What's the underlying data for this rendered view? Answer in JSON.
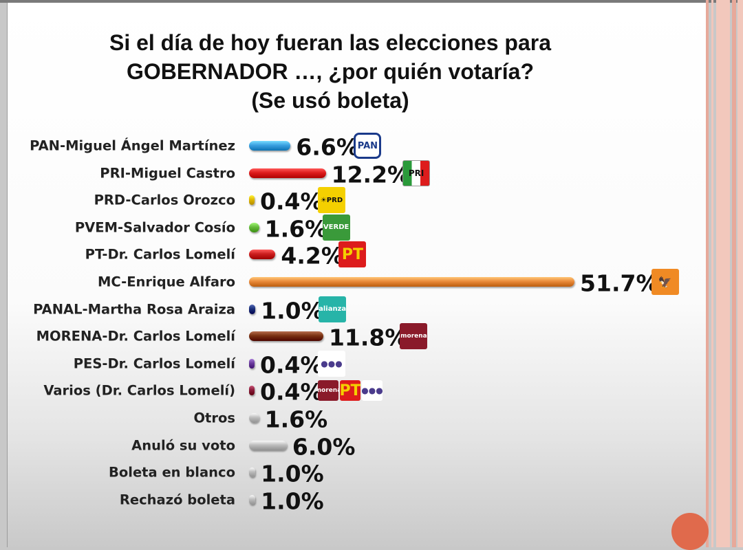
{
  "title": {
    "line1": "Si el día de hoy fueran las elecciones para",
    "line2": "GOBERNADOR …, ¿por quién votaría?",
    "line3": "(Se usó boleta)"
  },
  "colors": {
    "PAN": "#3aa0e0",
    "PRI": "#dd1c1c",
    "PRD": "#e0b800",
    "PVEM": "#66bb3c",
    "PT": "#cc1f1f",
    "MC": "#e98a3a",
    "PANAL": "#1a2f7a",
    "MORENA": "#7a3212",
    "PES": "#6a3b9c",
    "Varios": "#8b1a3a",
    "grey": "#bdbdbd"
  },
  "chart_data": {
    "type": "bar",
    "orientation": "horizontal",
    "categories": [
      "PAN-Miguel Ángel Martínez",
      "PRI-Miguel Castro",
      "PRD-Carlos Orozco",
      "PVEM-Salvador Cosío",
      "PT-Dr. Carlos Lomelí",
      "MC-Enrique Alfaro",
      "PANAL-Martha Rosa Araiza",
      "MORENA-Dr. Carlos Lomelí",
      "PES-Dr. Carlos Lomelí",
      "Varios (Dr. Carlos Lomelí)",
      "Otros",
      "Anuló su voto",
      "Boleta en blanco",
      "Rechazó boleta"
    ],
    "values": [
      6.6,
      12.2,
      0.4,
      1.6,
      4.2,
      51.7,
      1.0,
      11.8,
      0.4,
      0.4,
      1.6,
      6.0,
      1.0,
      1.0
    ],
    "value_labels": [
      "6.6%",
      "12.2%",
      "0.4%",
      "1.6%",
      "4.2%",
      "51.7%",
      "1.0%",
      "11.8%",
      "0.4%",
      "0.4%",
      "1.6%",
      "6.0%",
      "1.0%",
      "1.0%"
    ],
    "bar_colors": [
      "#3aa0e0",
      "#dd1c1c",
      "#e0b800",
      "#66bb3c",
      "#cc1f1f",
      "#e98a3a",
      "#1a2f7a",
      "#7a3212",
      "#6a3b9c",
      "#8b1a3a",
      "#bdbdbd",
      "#bdbdbd",
      "#bdbdbd",
      "#bdbdbd"
    ],
    "logos": [
      "PAN",
      "PRI",
      "PRD",
      "VERDE",
      "PT",
      "MC",
      "alianza",
      "morena",
      "encuentro",
      [
        "morena",
        "PT",
        "encuentro"
      ],
      "",
      "",
      "",
      ""
    ],
    "units": "%",
    "grid": false,
    "legend": "none"
  }
}
